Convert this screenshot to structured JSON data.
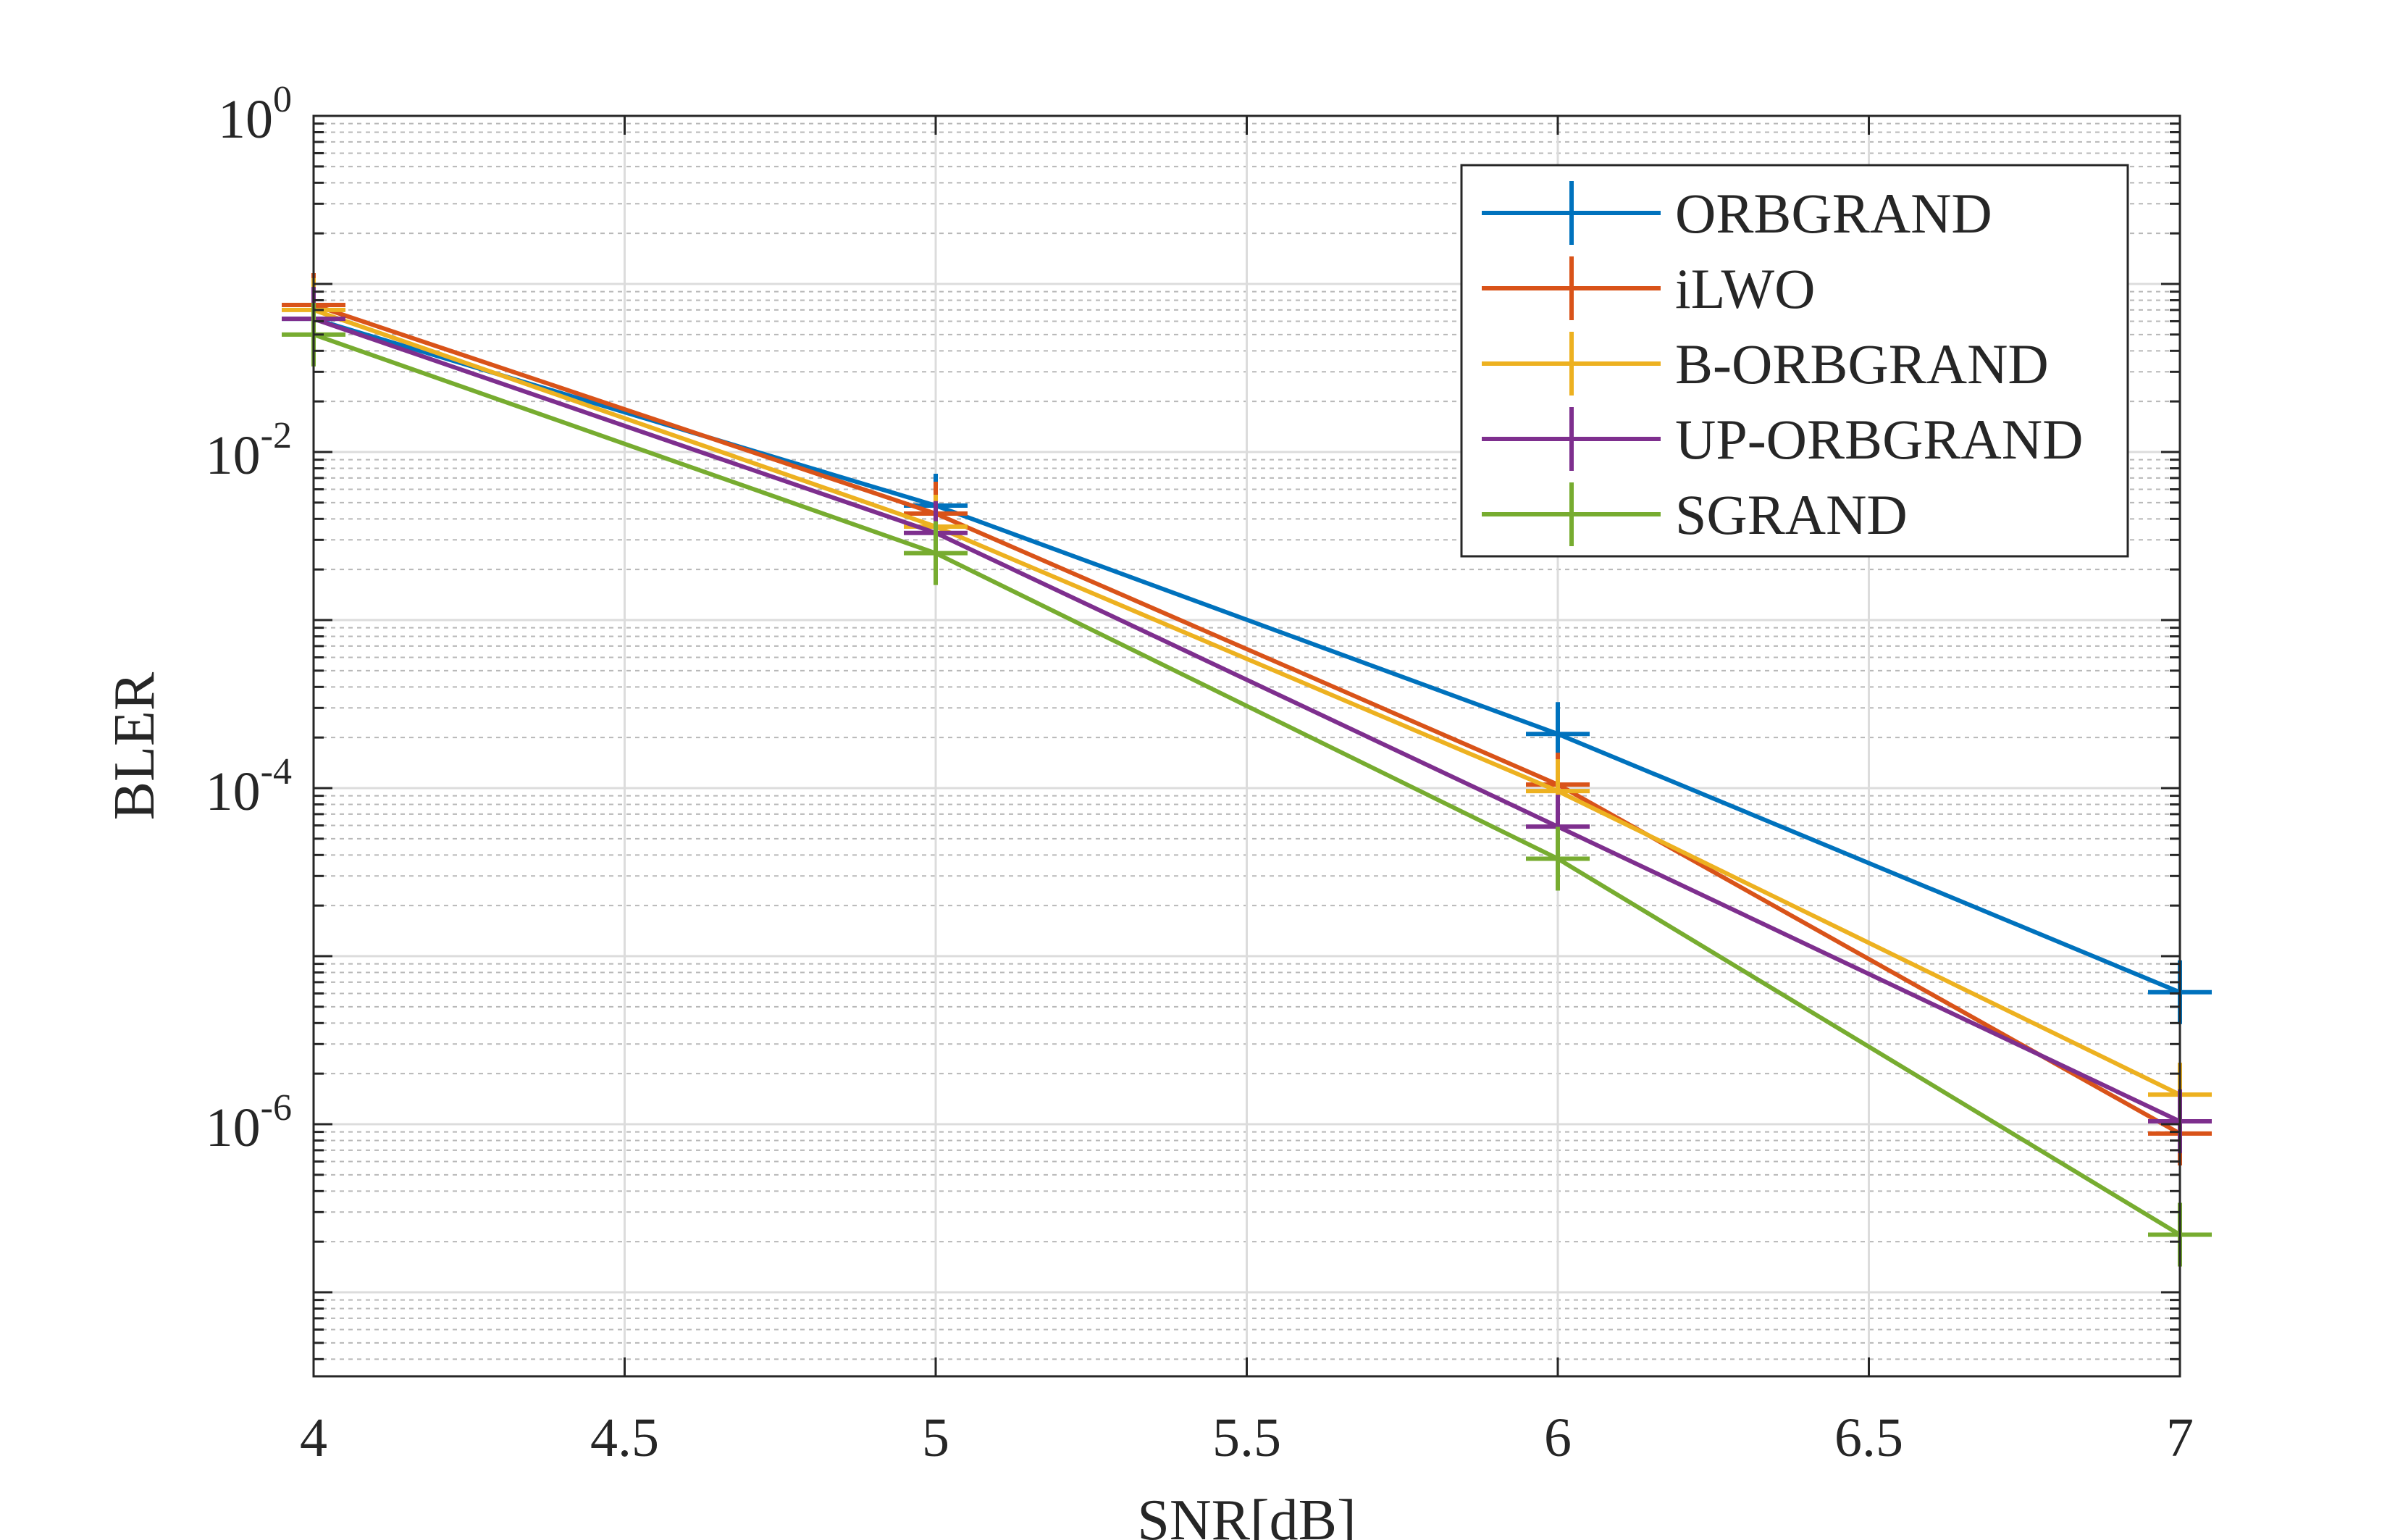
{
  "chart_data": {
    "type": "line",
    "xlabel": "SNR[dB]",
    "ylabel": "BLER",
    "xlim": [
      4,
      7
    ],
    "ylim_log10": [
      -7.5,
      0
    ],
    "yscale": "log",
    "grid": true,
    "minor_grid": true,
    "legend_position": "top-right",
    "x_ticks": [
      4,
      4.5,
      5,
      5.5,
      6,
      6.5,
      7
    ],
    "x_tick_labels": [
      "4",
      "4.5",
      "5",
      "5.5",
      "6",
      "6.5",
      "7"
    ],
    "y_ticks_log10": [
      0,
      -2,
      -4,
      -6
    ],
    "y_tick_base": "10",
    "y_tick_exponents": [
      "0",
      "-2",
      "-4",
      "-6"
    ],
    "marker": "plus",
    "series": [
      {
        "name": "ORBGRAND",
        "color": "#0072BD",
        "x": [
          4,
          5,
          6,
          7
        ],
        "y": [
          0.062,
          0.0048,
          0.00021,
          6.1e-06
        ]
      },
      {
        "name": "iLWO",
        "color": "#D95319",
        "x": [
          4,
          5,
          6,
          7
        ],
        "y": [
          0.075,
          0.0043,
          0.000105,
          8.8e-07
        ]
      },
      {
        "name": "B-ORBGRAND",
        "color": "#EDB120",
        "x": [
          4,
          5,
          6,
          7
        ],
        "y": [
          0.07,
          0.0036,
          9.6e-05,
          1.5e-06
        ]
      },
      {
        "name": "UP-ORBGRAND",
        "color": "#7E2F8E",
        "x": [
          4,
          5,
          6,
          7
        ],
        "y": [
          0.062,
          0.0033,
          5.9e-05,
          1.04e-06
        ]
      },
      {
        "name": "SGRAND",
        "color": "#77AC30",
        "x": [
          4,
          5,
          6,
          7
        ],
        "y": [
          0.05,
          0.0025,
          3.8e-05,
          2.2e-07
        ]
      }
    ]
  }
}
